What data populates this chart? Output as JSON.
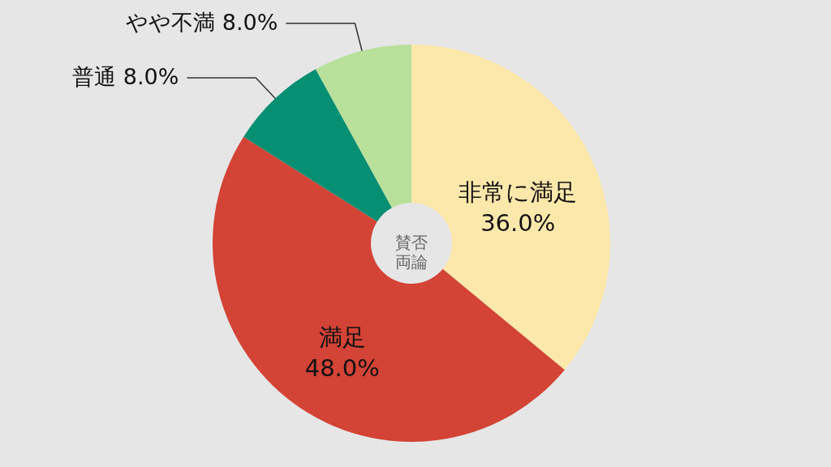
{
  "chart_data": {
    "type": "donut",
    "categories": [
      "非常に満足",
      "満足",
      "普通",
      "やや不満"
    ],
    "values": [
      36.0,
      48.0,
      8.0,
      8.0
    ],
    "colors": [
      "#fde8ab",
      "#d34336",
      "#078f73",
      "#b8e09a"
    ],
    "value_labels": [
      "36.0%",
      "48.0%",
      "8.0%",
      "8.0%"
    ],
    "annotations": [
      "賛否両論"
    ]
  }
}
